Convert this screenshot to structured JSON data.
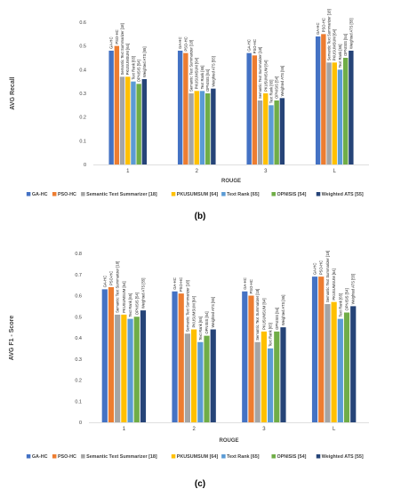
{
  "colors": {
    "GA-HC": "#4472c4",
    "PSO-HC": "#ed7d31",
    "Semantic Text Summarizer [18]": "#a5a5a5",
    "PKUSUMSUM [64]": "#ffc000",
    "Text Rank [65]": "#5b9bd5",
    "OPNISIS [54]": "#70ad47",
    "Weighted ATS [55]": "#264478"
  },
  "chart_data": [
    {
      "type": "bar",
      "caption": "(b)",
      "xlabel": "ROUGE",
      "ylabel": "AVG Recall",
      "ylim": [
        0,
        0.6
      ],
      "yticks": [
        "0",
        "0.1",
        "0.2",
        "0.3",
        "0.4",
        "0.5",
        "0.6"
      ],
      "categories": [
        "1",
        "2",
        "3",
        "L"
      ],
      "grid": false,
      "legend_position": "bottom",
      "series": [
        {
          "name": "GA-HC",
          "values": [
            0.48,
            0.48,
            0.47,
            0.54
          ]
        },
        {
          "name": "PSO-HC",
          "values": [
            0.5,
            0.47,
            0.46,
            0.55
          ]
        },
        {
          "name": "Semantic Text Summarizer [18]",
          "values": [
            0.37,
            0.3,
            0.27,
            0.43
          ]
        },
        {
          "name": "PKUSUMSUM [64]",
          "values": [
            0.37,
            0.31,
            0.3,
            0.43
          ]
        },
        {
          "name": "Text Rank [65]",
          "values": [
            0.35,
            0.31,
            0.25,
            0.4
          ]
        },
        {
          "name": "OPNISIS [54]",
          "values": [
            0.34,
            0.3,
            0.27,
            0.45
          ]
        },
        {
          "name": "Weighted ATS [55]",
          "values": [
            0.36,
            0.32,
            0.28,
            0.48
          ]
        }
      ]
    },
    {
      "type": "bar",
      "caption": "(c)",
      "xlabel": "ROUGE",
      "ylabel": "AVG F1 - Score",
      "ylim": [
        0,
        0.8
      ],
      "yticks": [
        "0",
        "0.1",
        "0.2",
        "0.3",
        "0.4",
        "0.5",
        "0.6",
        "0.7",
        "0.8"
      ],
      "categories": [
        "1",
        "2",
        "3",
        "L"
      ],
      "grid": false,
      "legend_position": "bottom",
      "series": [
        {
          "name": "GA-HC",
          "values": [
            0.63,
            0.62,
            0.62,
            0.69
          ]
        },
        {
          "name": "PSO-HC",
          "values": [
            0.64,
            0.61,
            0.6,
            0.69
          ]
        },
        {
          "name": "Semantic Text Summarizer [18]",
          "values": [
            0.51,
            0.42,
            0.38,
            0.56
          ]
        },
        {
          "name": "PKUSUMSUM [64]",
          "values": [
            0.51,
            0.44,
            0.43,
            0.57
          ]
        },
        {
          "name": "Text Rank [65]",
          "values": [
            0.49,
            0.38,
            0.35,
            0.49
          ]
        },
        {
          "name": "OPNISIS [54]",
          "values": [
            0.5,
            0.41,
            0.43,
            0.52
          ]
        },
        {
          "name": "Weighted ATS [55]",
          "values": [
            0.53,
            0.44,
            0.45,
            0.55
          ]
        }
      ]
    }
  ]
}
